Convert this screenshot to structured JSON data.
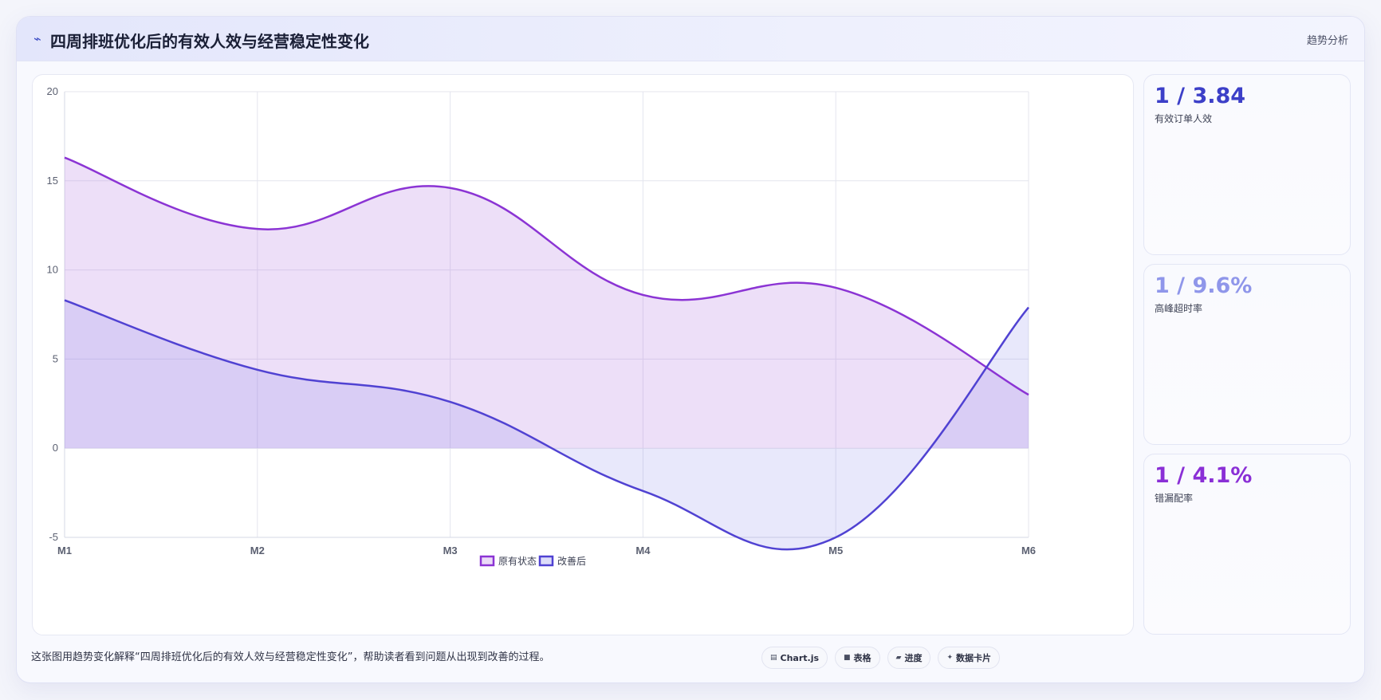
{
  "header": {
    "title": "四周排班优化后的有效人效与经营稳定性变化",
    "tag": "趋势分析",
    "icon": "trend-line-icon"
  },
  "chart_data": {
    "type": "area",
    "categories": [
      "M1",
      "M2",
      "M3",
      "M4",
      "M5",
      "M6"
    ],
    "series": [
      {
        "name": "原有状态",
        "values": [
          16.3,
          12.3,
          14.6,
          8.6,
          9.0,
          3.0
        ],
        "color": "#8b34d4",
        "fill": "rgba(175,110,225,0.22)"
      },
      {
        "name": "改善后",
        "values": [
          8.3,
          4.4,
          2.6,
          -2.4,
          -5.0,
          7.9
        ],
        "color": "#5042d2",
        "fill": "rgba(120,120,230,0.17)"
      }
    ],
    "ylim": [
      -5,
      20
    ],
    "yticks": [
      -5,
      0,
      5,
      10,
      15,
      20
    ],
    "grid": true,
    "legend": "bottom"
  },
  "metrics": [
    {
      "value": "1 / 3.84",
      "label": "有效订单人效",
      "color": "#3c3fc8"
    },
    {
      "value": "1 / 9.6%",
      "label": "高峰超时率",
      "color": "#8f96ea"
    },
    {
      "value": "1 / 4.1%",
      "label": "错漏配率",
      "color": "#8a2fd6"
    }
  ],
  "footer": {
    "note": "这张图用趋势变化解释“四周排班优化后的有效人效与经营稳定性变化”，帮助读者看到问题从出现到改善的过程。",
    "chips": [
      {
        "label": "Chart.js",
        "icon": "chart-icon"
      },
      {
        "label": "表格",
        "icon": "table-icon"
      },
      {
        "label": "进度",
        "icon": "progress-icon"
      },
      {
        "label": "数据卡片",
        "icon": "sparkle-icon"
      }
    ]
  }
}
